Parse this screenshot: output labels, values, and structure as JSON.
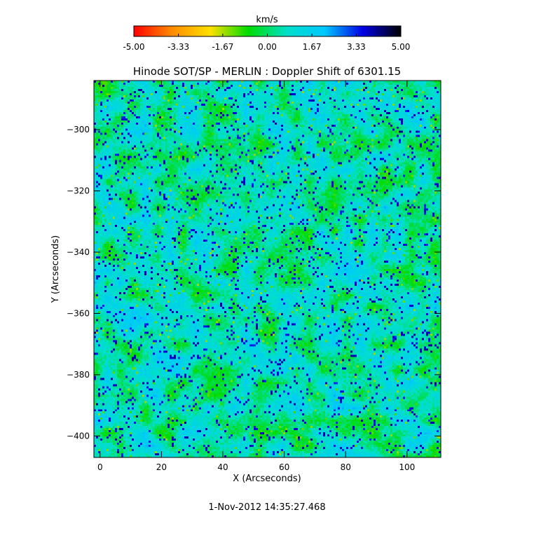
{
  "chart_data": {
    "type": "heatmap",
    "title": "Hinode SOT/SP - MERLIN : Doppler Shift of 6301.15",
    "xlabel": "X (Arcseconds)",
    "ylabel": "Y (Arcseconds)",
    "xlim": [
      -2,
      111
    ],
    "ylim": [
      -407,
      -284
    ],
    "xticks": [
      0,
      20,
      40,
      60,
      80,
      100
    ],
    "yticks": [
      -300,
      -320,
      -340,
      -360,
      -380,
      -400
    ],
    "colorbar": {
      "label": "km/s",
      "range": [
        -5.0,
        5.0
      ],
      "tick_labels": [
        "-5.00",
        "-3.33",
        "-1.67",
        "0.00",
        "1.67",
        "3.33",
        "5.00"
      ],
      "tick_values": [
        -5.0,
        -3.33,
        -1.67,
        0.0,
        1.67,
        3.33,
        5.0
      ],
      "colors": [
        "#ff0000",
        "#ff8c00",
        "#ffe000",
        "#00dc00",
        "#00e0c8",
        "#00c8ff",
        "#0000e6",
        "#000000"
      ]
    },
    "value_distribution": "speckled granulation pattern, values mostly between -1.5 and 3.5 km/s",
    "timestamp": "1-Nov-2012 14:35:27.468"
  }
}
